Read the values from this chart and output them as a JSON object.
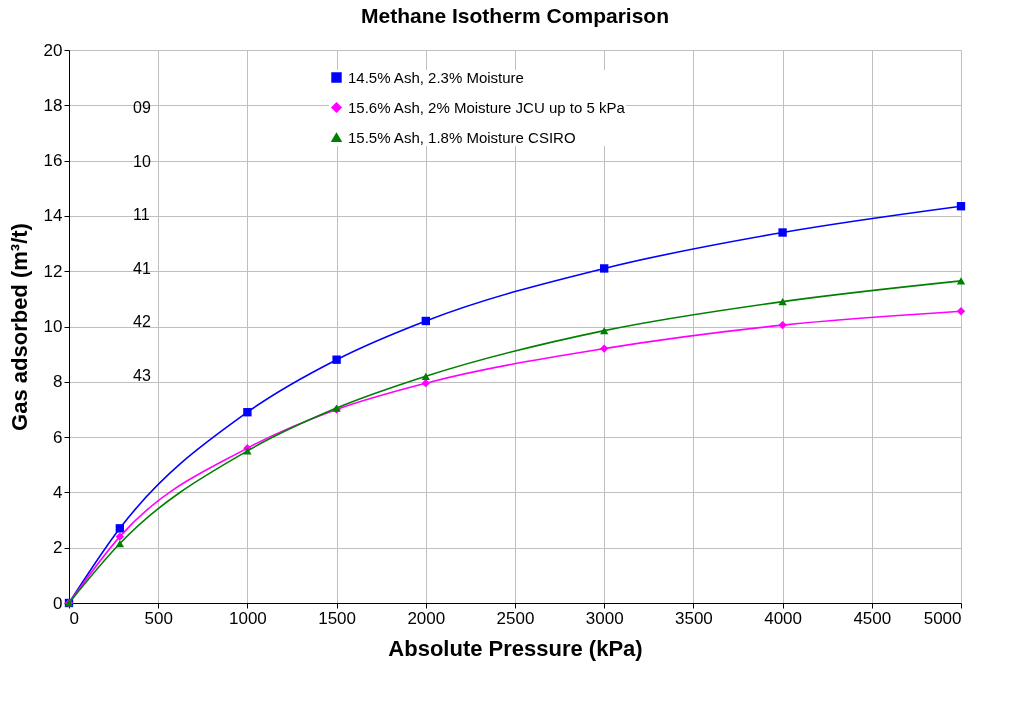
{
  "chart_data": {
    "type": "line",
    "title": "Methane Isotherm Comparison",
    "xlabel": "Absolute Pressure (kPa)",
    "ylabel": "Gas adsorbed (m³/t)",
    "x": [
      0,
      285,
      1000,
      1500,
      2000,
      3000,
      4000,
      5000
    ],
    "series": [
      {
        "name": "14.5% Ash, 2.3% Moisture",
        "color": "#0000ff",
        "marker": "square",
        "values": [
          0,
          2.7,
          6.9,
          8.8,
          10.2,
          12.1,
          13.4,
          14.35
        ]
      },
      {
        "name": "15.6% Ash, 2% Moisture JCU up to 5 kPa",
        "color": "#ff00ff",
        "marker": "diamond",
        "values": [
          0,
          2.4,
          5.6,
          7.0,
          7.95,
          9.2,
          10.05,
          10.55
        ]
      },
      {
        "name": "15.5% Ash, 1.8% Moisture CSIRO",
        "color": "#008000",
        "marker": "triangle",
        "values": [
          0,
          2.15,
          5.5,
          7.05,
          8.2,
          9.85,
          10.9,
          11.65
        ]
      }
    ],
    "xlim": [
      0,
      5000
    ],
    "xticks": [
      0,
      500,
      1000,
      1500,
      2000,
      2500,
      3000,
      3500,
      4000,
      4500,
      5000
    ],
    "ylim": [
      0,
      20
    ],
    "yticks": [
      0,
      2,
      4,
      6,
      8,
      10,
      12,
      14,
      16,
      18,
      20
    ],
    "grid": true,
    "legend": "top",
    "line_style": "solid",
    "annotations": [
      "09",
      "10",
      "11",
      "41",
      "42",
      "43"
    ]
  }
}
